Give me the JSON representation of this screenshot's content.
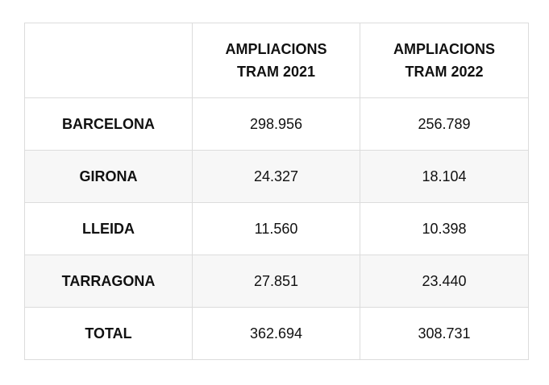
{
  "table": {
    "headers": [
      "",
      "AMPLIACIONS TRAM 2021",
      "AMPLIACIONS TRAM 2022"
    ],
    "header_lines": [
      [],
      [
        "AMPLIACIONS",
        "TRAM 2021"
      ],
      [
        "AMPLIACIONS",
        "TRAM 2022"
      ]
    ],
    "rows": [
      {
        "label": "BARCELONA",
        "v2021": "298.956",
        "v2022": "256.789"
      },
      {
        "label": "GIRONA",
        "v2021": "24.327",
        "v2022": "18.104"
      },
      {
        "label": "LLEIDA",
        "v2021": "11.560",
        "v2022": "10.398"
      },
      {
        "label": "TARRAGONA",
        "v2021": "27.851",
        "v2022": "23.440"
      },
      {
        "label": "TOTAL",
        "v2021": "362.694",
        "v2022": "308.731"
      }
    ]
  },
  "colors": {
    "border": "#dcdcdc",
    "alt_row": "#f7f7f7",
    "text": "#111111"
  }
}
